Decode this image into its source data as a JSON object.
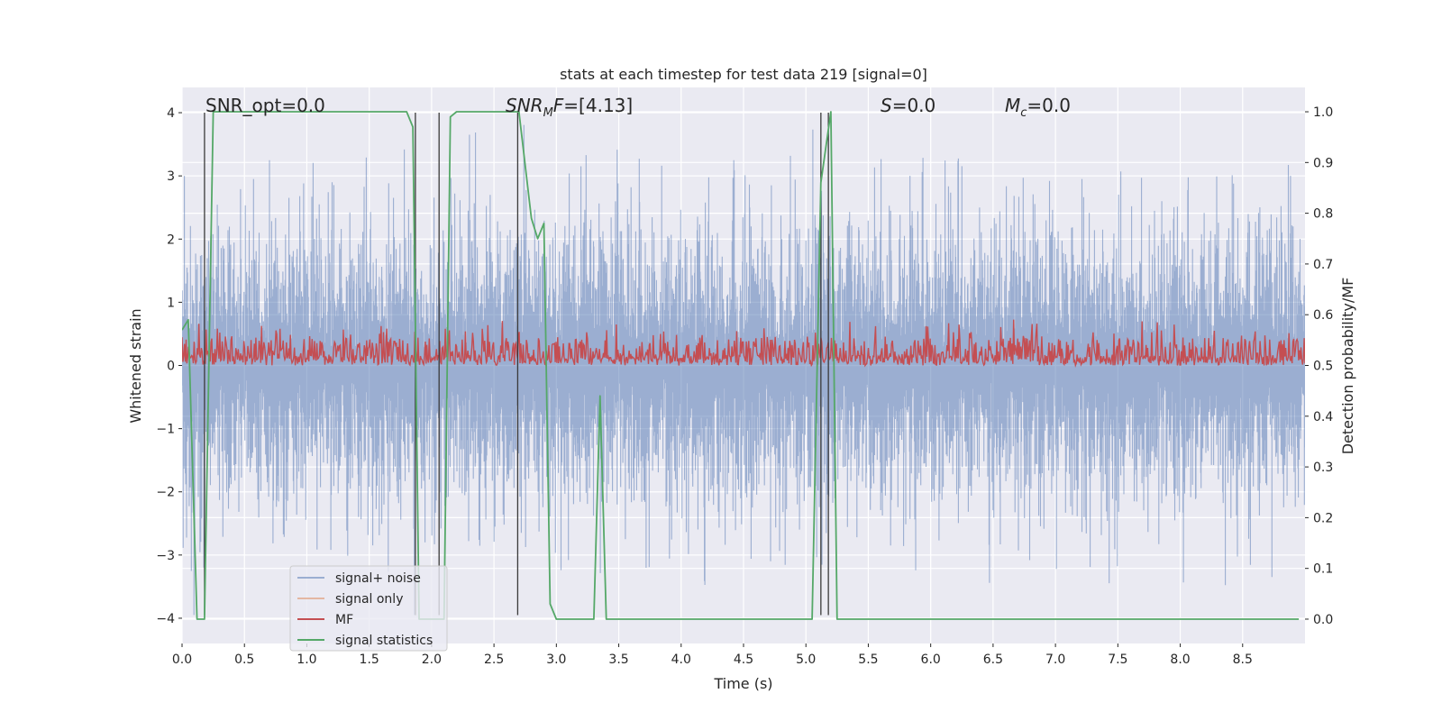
{
  "chart_data": {
    "type": "line",
    "title": "stats at each timestep for test data 219 [signal=0]",
    "xlabel": "Time (s)",
    "ylabel": "Whitened strain",
    "ylabel_right": "Detection probability/MF",
    "xlim": [
      0.0,
      9.0
    ],
    "ylim": [
      -4.4,
      4.4
    ],
    "ylim_right": [
      -0.048,
      1.048
    ],
    "x_ticks": [
      0.0,
      0.5,
      1.0,
      1.5,
      2.0,
      2.5,
      3.0,
      3.5,
      4.0,
      4.5,
      5.0,
      5.5,
      6.0,
      6.5,
      7.0,
      7.5,
      8.0,
      8.5
    ],
    "x_tick_labels": [
      "0.0",
      "0.5",
      "1.0",
      "1.5",
      "2.0",
      "2.5",
      "3.0",
      "3.5",
      "4.0",
      "4.5",
      "5.0",
      "5.5",
      "6.0",
      "6.5",
      "7.0",
      "7.5",
      "8.0",
      "8.5"
    ],
    "y_ticks": [
      -4,
      -3,
      -2,
      -1,
      0,
      1,
      2,
      3,
      4
    ],
    "y_tick_labels": [
      "−4",
      "−3",
      "−2",
      "−1",
      "0",
      "1",
      "2",
      "3",
      "4"
    ],
    "y_ticks_right": [
      0.0,
      0.1,
      0.2,
      0.3,
      0.4,
      0.5,
      0.6,
      0.7,
      0.8,
      0.9,
      1.0
    ],
    "y_tick_labels_right": [
      "0.0",
      "0.1",
      "0.2",
      "0.3",
      "0.4",
      "0.5",
      "0.6",
      "0.7",
      "0.8",
      "0.9",
      "1.0"
    ],
    "grid": true,
    "legend_position": "lower-left",
    "annotations": {
      "snr_opt": "SNR_opt=0.0",
      "snr_mf": "SNR_MF=[4.13]",
      "s": "S=0.0",
      "mc": "M_c=0.0"
    },
    "series": [
      {
        "name": "signal+ noise",
        "color": "#4c72b0",
        "axis": "left",
        "description_values": "noise envelope roughly between -3.5 and 4.0",
        "peak_highs": [
          2.4,
          2.7,
          3.4,
          4.0,
          3.1,
          3.5,
          3.5,
          3.3,
          3.3,
          3.8,
          3.6,
          3.5,
          3.4,
          3.3,
          3.6,
          3.0,
          3.3,
          2.6
        ],
        "peak_lows": [
          -3.6,
          -3.4,
          -3.3,
          -3.1,
          -3.4,
          -3.5,
          -3.6,
          -3.3,
          -3.2,
          -3.3,
          -3.2,
          -3.3,
          -3.4,
          -3.3,
          -3.7,
          -3.4,
          -3.5,
          -3.6
        ]
      },
      {
        "name": "signal only",
        "color": "#dd8452",
        "axis": "left",
        "values": []
      },
      {
        "name": "MF",
        "color": "#c44e52",
        "axis": "right",
        "band": [
          0.5,
          0.6
        ],
        "max": 0.62
      },
      {
        "name": "signal statistics",
        "color": "#55a868",
        "axis": "right",
        "x": [
          0.0,
          0.05,
          0.12,
          0.18,
          0.25,
          0.3,
          1.8,
          1.85,
          1.9,
          1.95,
          2.05,
          2.1,
          2.15,
          2.2,
          2.7,
          2.8,
          2.85,
          2.9,
          2.95,
          3.0,
          3.05,
          3.15,
          3.3,
          3.35,
          3.4,
          3.5,
          3.6,
          3.7,
          5.05,
          5.12,
          5.2,
          5.25,
          8.95
        ],
        "y": [
          0.57,
          0.59,
          0.0,
          0.0,
          1.0,
          1.0,
          1.0,
          0.97,
          0.0,
          0.0,
          0.0,
          0.0,
          0.99,
          1.0,
          1.0,
          0.79,
          0.75,
          0.78,
          0.03,
          0.0,
          0.0,
          0.0,
          0.0,
          0.44,
          0.0,
          0.0,
          0.0,
          0.0,
          0.0,
          0.86,
          1.0,
          0.0,
          0.0
        ]
      }
    ],
    "vertical_lines_x": [
      0.18,
      1.87,
      2.06,
      2.69,
      5.12,
      5.18
    ]
  },
  "legend": [
    {
      "label": "signal+ noise",
      "color": "#4c72b0",
      "alpha": 0.5
    },
    {
      "label": "signal only",
      "color": "#dd8452",
      "alpha": 0.5
    },
    {
      "label": "MF",
      "color": "#c44e52",
      "alpha": 1
    },
    {
      "label": "signal statistics",
      "color": "#55a868",
      "alpha": 1
    }
  ],
  "colors": {
    "plot_background": "#eaeaf2",
    "grid": "#ffffff",
    "vline": "#3a3a3a"
  }
}
